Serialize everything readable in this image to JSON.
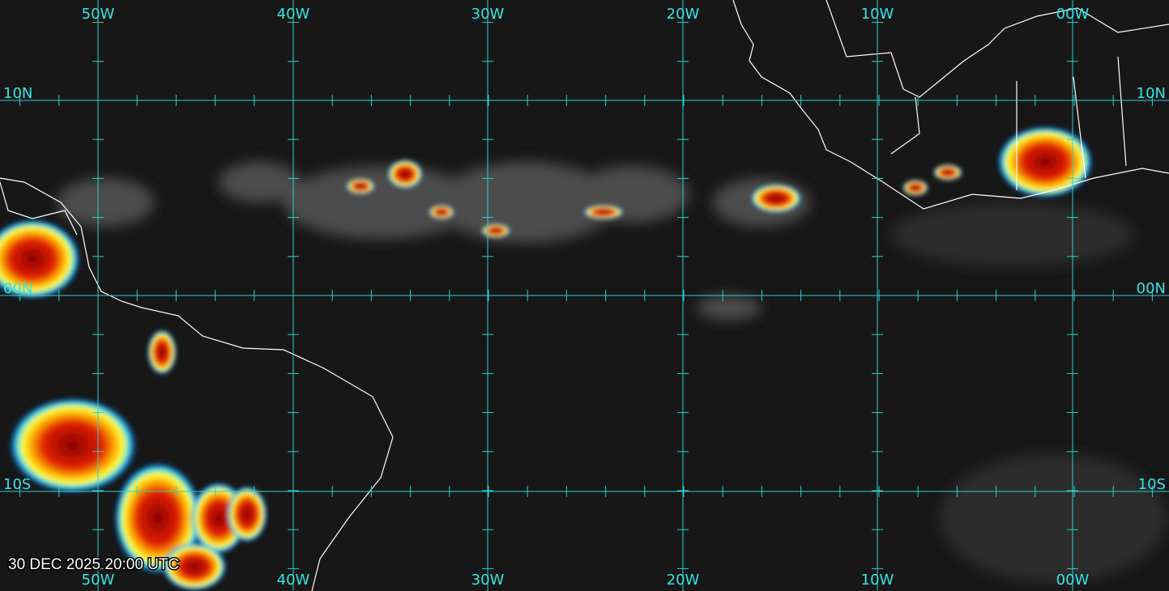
{
  "map": {
    "top_longitude_labels": [
      "50W",
      "40W",
      "30W",
      "20W",
      "10W",
      "00W"
    ],
    "bottom_longitude_labels": [
      "50W",
      "40W",
      "30W",
      "20W",
      "10W",
      "00W"
    ],
    "left_latitude_labels": [
      "10N",
      "00N",
      "10S"
    ],
    "right_latitude_labels": [
      "10N",
      "00N",
      "10S"
    ],
    "timestamp": "30 DEC 2025 20:00 UTC"
  }
}
